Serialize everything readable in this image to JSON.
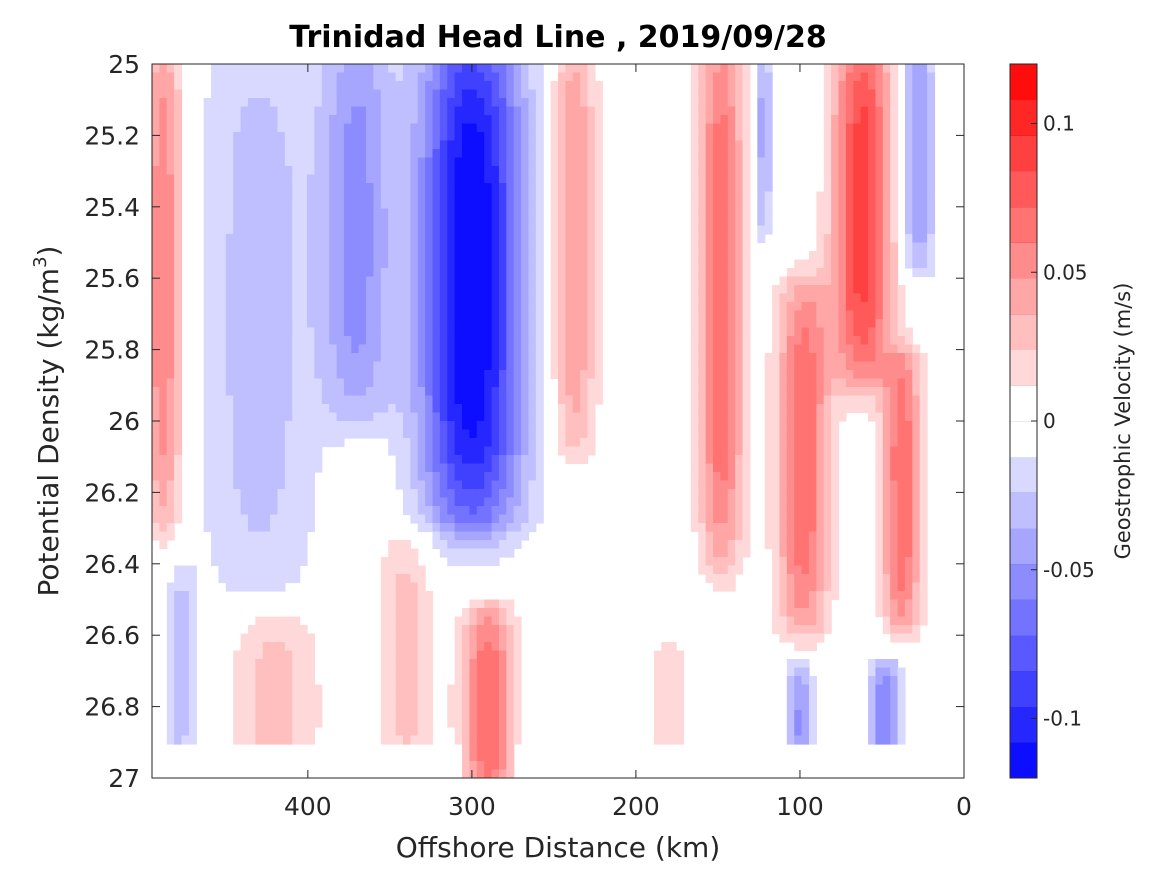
{
  "chart_data": {
    "type": "heatmap",
    "title": "Trinidad Head Line , 2019/09/28",
    "xlabel": "Offshore Distance (km)",
    "ylabel_main": "Potential Density (kg/m",
    "ylabel_sup": "3",
    "ylabel_close": ")",
    "colorbar_label": "Geostrophic Velocity (m/s)",
    "xlim": [
      495,
      0
    ],
    "x_reversed": true,
    "ylim": [
      25,
      27
    ],
    "y_reversed": true,
    "x_ticks": [
      400,
      300,
      200,
      100,
      0
    ],
    "x_tick_labels": [
      "400",
      "300",
      "200",
      "100",
      "0"
    ],
    "y_ticks": [
      25,
      25.2,
      25.4,
      25.6,
      25.8,
      26,
      26.2,
      26.4,
      26.6,
      26.8,
      27
    ],
    "y_tick_labels": [
      "25",
      "25.2",
      "25.4",
      "25.6",
      "25.8",
      "26",
      "26.2",
      "26.4",
      "26.6",
      "26.8",
      "27"
    ],
    "colorbar_range": [
      -0.12,
      0.12
    ],
    "colorbar_levels": 20,
    "colorbar_ticks": [
      0.1,
      0.05,
      0,
      -0.05,
      -0.1
    ],
    "colorbar_tick_labels": [
      "0.1",
      "0.05",
      "0",
      "-0.05",
      "-0.1"
    ],
    "colormap": "blue-white-red",
    "colors": {
      "negative": "#0000ff",
      "zero": "#ffffff",
      "positive": "#ff0000"
    },
    "grid": false,
    "data_bottom_density": 26.9,
    "velocity_features": [
      {
        "x": 488,
        "ymin": 25.0,
        "ymax": 26.2,
        "width": 12,
        "peak": 0.06
      },
      {
        "x": 478,
        "ymin": 26.5,
        "ymax": 26.9,
        "width": 10,
        "peak": -0.03
      },
      {
        "x": 430,
        "ymin": 25.0,
        "ymax": 26.4,
        "width": 38,
        "peak": -0.03
      },
      {
        "x": 370,
        "ymin": 25.0,
        "ymax": 25.9,
        "width": 22,
        "peak": -0.05
      },
      {
        "x": 300,
        "ymin": 25.0,
        "ymax": 26.2,
        "width": 32,
        "peak": -0.12
      },
      {
        "x": 238,
        "ymin": 25.0,
        "ymax": 26.0,
        "width": 14,
        "peak": 0.05
      },
      {
        "x": 148,
        "ymin": 25.0,
        "ymax": 26.3,
        "width": 14,
        "peak": 0.07
      },
      {
        "x": 123,
        "ymin": 25.0,
        "ymax": 25.4,
        "width": 6,
        "peak": -0.04
      },
      {
        "x": 98,
        "ymin": 25.7,
        "ymax": 26.5,
        "width": 16,
        "peak": 0.07
      },
      {
        "x": 62,
        "ymin": 25.0,
        "ymax": 25.8,
        "width": 18,
        "peak": 0.09
      },
      {
        "x": 38,
        "ymin": 25.9,
        "ymax": 26.5,
        "width": 12,
        "peak": 0.07
      },
      {
        "x": 28,
        "ymin": 25.0,
        "ymax": 25.5,
        "width": 10,
        "peak": -0.05
      },
      {
        "x": 420,
        "ymin": 26.6,
        "ymax": 26.9,
        "width": 28,
        "peak": 0.03
      },
      {
        "x": 340,
        "ymin": 26.4,
        "ymax": 26.9,
        "width": 18,
        "peak": 0.03
      },
      {
        "x": 290,
        "ymin": 26.6,
        "ymax": 27.0,
        "width": 16,
        "peak": 0.07
      },
      {
        "x": 180,
        "ymin": 26.7,
        "ymax": 26.9,
        "width": 14,
        "peak": 0.02
      },
      {
        "x": 100,
        "ymin": 26.75,
        "ymax": 26.9,
        "width": 8,
        "peak": -0.05
      },
      {
        "x": 48,
        "ymin": 26.75,
        "ymax": 26.9,
        "width": 10,
        "peak": -0.06
      }
    ]
  }
}
